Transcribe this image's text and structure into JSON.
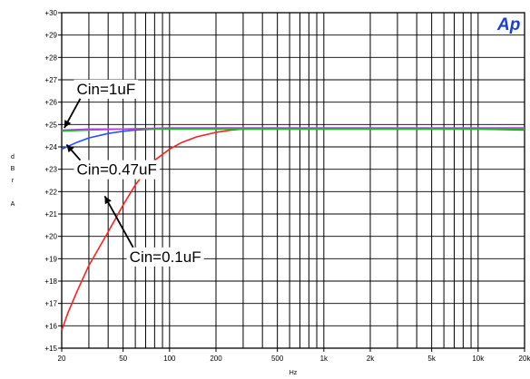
{
  "logo": {
    "text": "Ap",
    "color": "#1a3fd0"
  },
  "chart_data": {
    "type": "line",
    "xscale": "log",
    "xlim": [
      20,
      20000
    ],
    "ylim": [
      15,
      30
    ],
    "grid": true,
    "xlabel": "Hz",
    "ylabel_letters": [
      "d",
      "B",
      "r",
      "",
      "A"
    ],
    "xticks": [
      {
        "value": 20,
        "label": "20"
      },
      {
        "value": 50,
        "label": "50"
      },
      {
        "value": 100,
        "label": "100"
      },
      {
        "value": 200,
        "label": "200"
      },
      {
        "value": 500,
        "label": "500"
      },
      {
        "value": 1000,
        "label": "1k"
      },
      {
        "value": 2000,
        "label": "2k"
      },
      {
        "value": 5000,
        "label": "5k"
      },
      {
        "value": 10000,
        "label": "10k"
      },
      {
        "value": 20000,
        "label": "20k"
      }
    ],
    "yticks": [
      {
        "value": 30,
        "label": "+30"
      },
      {
        "value": 29,
        "label": "+29"
      },
      {
        "value": 28,
        "label": "+28"
      },
      {
        "value": 27,
        "label": "+27"
      },
      {
        "value": 26,
        "label": "+26"
      },
      {
        "value": 25,
        "label": "+25"
      },
      {
        "value": 24,
        "label": "+24"
      },
      {
        "value": 23,
        "label": "+23"
      },
      {
        "value": 22,
        "label": "+22"
      },
      {
        "value": 21,
        "label": "+21"
      },
      {
        "value": 20,
        "label": "+20"
      },
      {
        "value": 19,
        "label": "+19"
      },
      {
        "value": 18,
        "label": "+18"
      },
      {
        "value": 17,
        "label": "+17"
      },
      {
        "value": 16,
        "label": "+16"
      },
      {
        "value": 15,
        "label": "+15"
      }
    ],
    "series": [
      {
        "color": "#ff2020",
        "x": [
          20,
          22,
          25,
          30,
          35,
          40,
          50,
          60,
          70,
          80,
          100,
          120,
          150,
          200,
          250,
          300,
          500,
          1000,
          2000,
          5000,
          10000,
          20000
        ],
        "y": [
          15.8,
          16.6,
          17.5,
          18.7,
          19.5,
          20.2,
          21.4,
          22.3,
          22.9,
          23.4,
          23.9,
          24.2,
          24.45,
          24.65,
          24.75,
          24.8,
          24.8,
          24.8,
          24.8,
          24.8,
          24.8,
          24.75
        ]
      },
      {
        "color": "#2050ff",
        "x": [
          20,
          25,
          30,
          40,
          50,
          60,
          80,
          100,
          150,
          200,
          500,
          1000,
          2000,
          5000,
          10000,
          20000
        ],
        "y": [
          23.9,
          24.2,
          24.4,
          24.6,
          24.7,
          24.75,
          24.8,
          24.8,
          24.8,
          24.8,
          24.8,
          24.8,
          24.8,
          24.8,
          24.8,
          24.8
        ]
      },
      {
        "color": "#20c020",
        "x": [
          20,
          30,
          50,
          100,
          200,
          500,
          1000,
          2000,
          5000,
          10000,
          20000
        ],
        "y": [
          24.7,
          24.75,
          24.8,
          24.8,
          24.8,
          24.8,
          24.8,
          24.8,
          24.8,
          24.8,
          24.8
        ]
      },
      {
        "color": "#b040e0",
        "x": [
          20,
          30,
          50,
          100,
          200,
          500,
          1000,
          2000,
          5000,
          10000,
          20000
        ],
        "y": [
          24.75,
          24.8,
          24.8,
          24.85,
          24.85,
          24.85,
          24.85,
          24.85,
          24.85,
          24.85,
          24.85
        ]
      }
    ],
    "annotations": [
      {
        "text": "Cin=1uF",
        "label_x": 25,
        "label_y": 26.6,
        "arrow_x": 20.8,
        "arrow_y": 24.85
      },
      {
        "text": "Cin=0.47uF",
        "label_x": 25,
        "label_y": 23.0,
        "arrow_x": 21.5,
        "arrow_y": 24.1
      },
      {
        "text": "Cin=0.1uF",
        "label_x": 55,
        "label_y": 19.1,
        "arrow_x": 38,
        "arrow_y": 21.8
      }
    ]
  }
}
